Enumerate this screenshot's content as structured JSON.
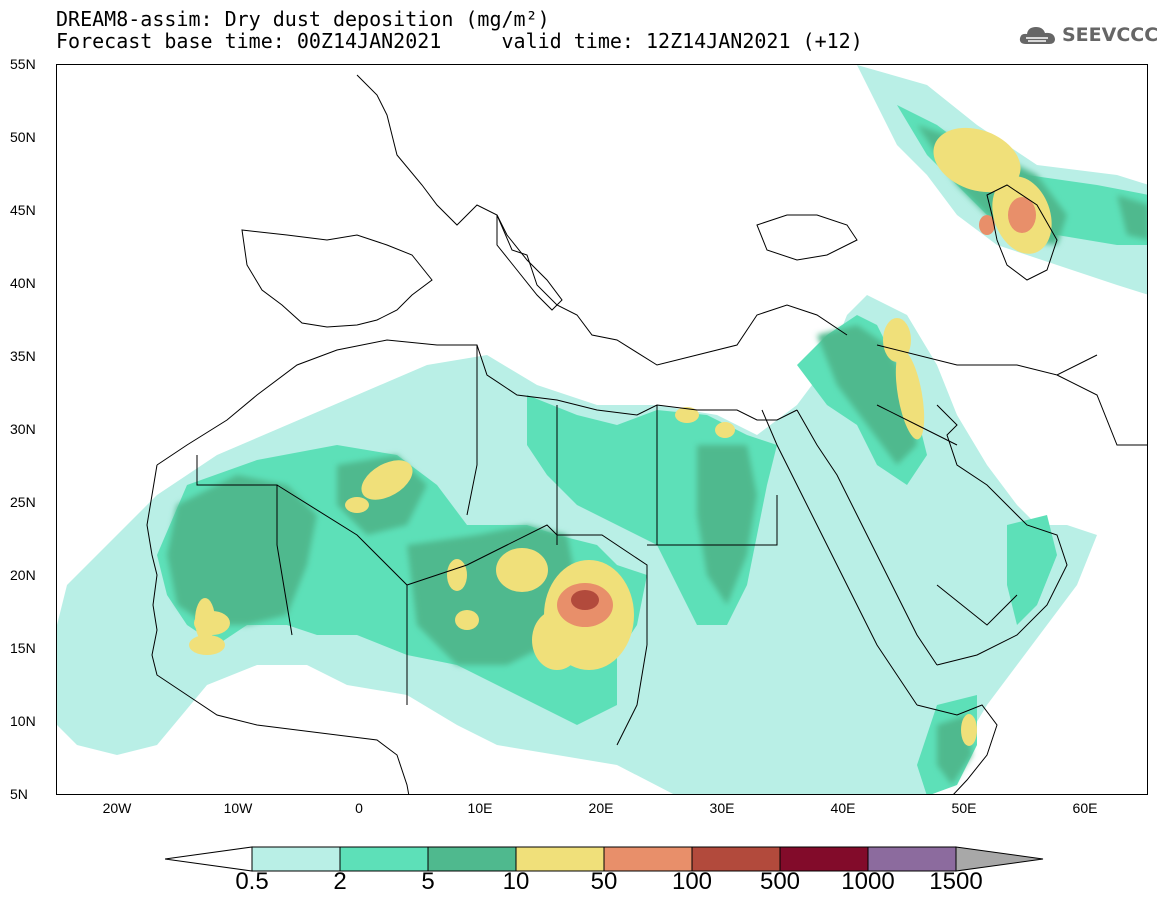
{
  "title": {
    "line1": "DREAM8-assim: Dry dust deposition (mg/m²)",
    "line2": "Forecast base time: 00Z14JAN2021     valid time: 12Z14JAN2021 (+12)"
  },
  "logo": {
    "text": "SEEVCCC",
    "icon": "cloud-icon"
  },
  "map": {
    "lon_range": [
      -25,
      65
    ],
    "lat_range": [
      5,
      55
    ],
    "lat_ticks": [
      "55N",
      "50N",
      "45N",
      "40N",
      "35N",
      "30N",
      "25N",
      "20N",
      "15N",
      "10N",
      "5N"
    ],
    "lon_ticks": [
      "20W",
      "10W",
      "0",
      "10E",
      "20E",
      "30E",
      "40E",
      "50E",
      "60E"
    ],
    "lat_values": [
      55,
      50,
      45,
      40,
      35,
      30,
      25,
      20,
      15,
      10,
      5
    ],
    "lon_values": [
      -20,
      -10,
      0,
      10,
      20,
      30,
      40,
      50,
      60
    ]
  },
  "legend": {
    "labels": [
      "0.5",
      "2",
      "5",
      "10",
      "50",
      "100",
      "500",
      "1000",
      "1500"
    ],
    "colors": [
      "#ffffff",
      "#b9efe6",
      "#5de0b8",
      "#4fb98e",
      "#f0e07a",
      "#e88f6a",
      "#b24a3c",
      "#820b2a",
      "#8c6b9e",
      "#a8a8a8"
    ],
    "levels": [
      {
        "name": "0.5-2",
        "color": "#b9efe6"
      },
      {
        "name": "2-5",
        "color": "#5de0b8"
      },
      {
        "name": "5-10",
        "color": "#4fb98e"
      },
      {
        "name": "10-50",
        "color": "#f0e07a"
      },
      {
        "name": "50-100",
        "color": "#e88f6a"
      },
      {
        "name": "100-500",
        "color": "#b24a3c"
      }
    ]
  }
}
